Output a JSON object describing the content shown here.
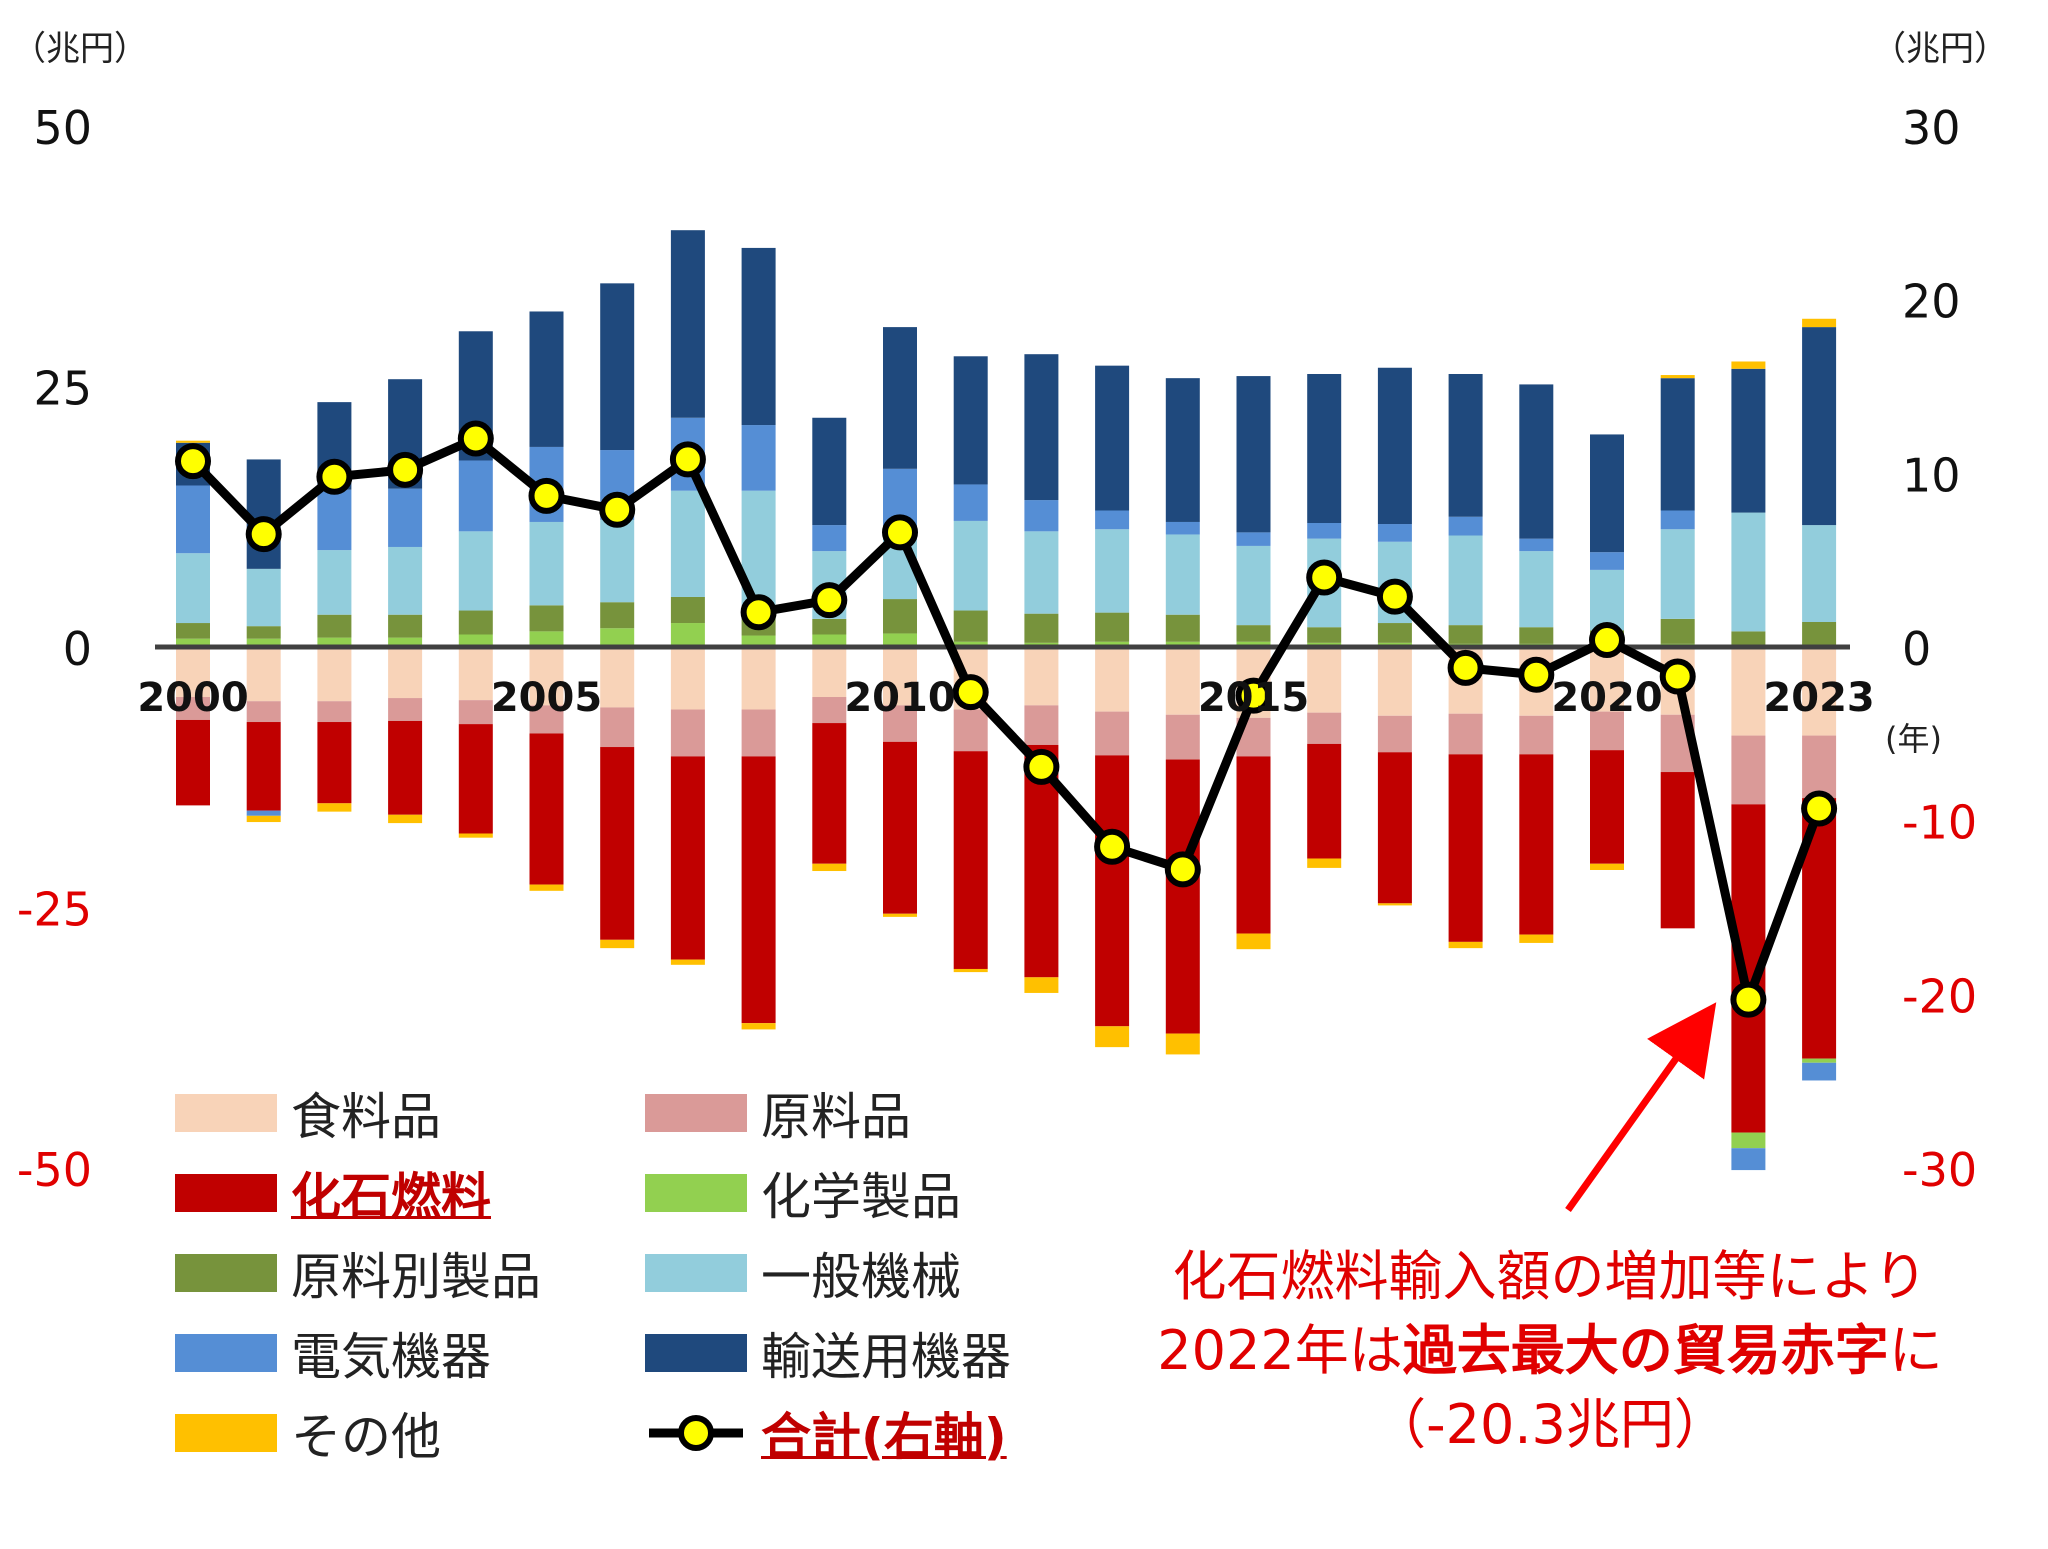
{
  "chart_data": {
    "type": "stacked-bar+line",
    "title": "",
    "left_axis": {
      "unit_label": "（兆円）",
      "ticks": [
        50,
        25,
        0,
        -25,
        -50
      ],
      "ylim": [
        -50,
        50
      ]
    },
    "right_axis": {
      "unit_label": "（兆円）",
      "ticks": [
        30,
        20,
        10,
        0,
        -10,
        -20,
        -30
      ],
      "ylim": [
        -30,
        30
      ]
    },
    "x_unit_label": "(年)",
    "years": [
      2000,
      2001,
      2002,
      2003,
      2004,
      2005,
      2006,
      2007,
      2008,
      2009,
      2010,
      2011,
      2012,
      2013,
      2014,
      2015,
      2016,
      2017,
      2018,
      2019,
      2020,
      2021,
      2022,
      2023
    ],
    "year_tick_labels": [
      {
        "index": 0,
        "label": "2000"
      },
      {
        "index": 5,
        "label": "2005"
      },
      {
        "index": 10,
        "label": "2010"
      },
      {
        "index": 15,
        "label": "2015"
      },
      {
        "index": 20,
        "label": "2020"
      },
      {
        "index": 23,
        "label": "2023"
      }
    ],
    "series": [
      {
        "key": "food",
        "name": "食料品",
        "color": "#f8d3b8",
        "sign": "negative",
        "values": [
          -4.8,
          -5.2,
          -5.2,
          -4.9,
          -5.1,
          -5.6,
          -5.8,
          -6.0,
          -6.0,
          -4.8,
          -5.6,
          -6.0,
          -5.6,
          -6.2,
          -6.5,
          -6.8,
          -6.3,
          -6.6,
          -6.4,
          -6.6,
          -6.2,
          -6.5,
          -8.5,
          -8.5
        ]
      },
      {
        "key": "raw_materials",
        "name": "原料品",
        "color": "#da9a98",
        "sign": "negative",
        "values": [
          -2.2,
          -2.0,
          -2.0,
          -2.2,
          -2.3,
          -2.7,
          -3.8,
          -4.5,
          -4.5,
          -2.5,
          -3.5,
          -4.0,
          -3.8,
          -4.2,
          -4.3,
          -3.7,
          -3.0,
          -3.5,
          -3.9,
          -3.7,
          -3.7,
          -5.5,
          -6.6,
          -6.0
        ]
      },
      {
        "key": "fossil_fuel",
        "name": "化石燃料",
        "color": "#c00000",
        "sign": "negative",
        "values": [
          -8.2,
          -8.5,
          -7.8,
          -9.0,
          -10.5,
          -14.5,
          -18.5,
          -19.5,
          -25.6,
          -13.5,
          -16.5,
          -20.9,
          -22.3,
          -26.0,
          -26.3,
          -17.0,
          -11.0,
          -14.5,
          -18.0,
          -17.3,
          -10.9,
          -15.0,
          -31.5,
          -25.0
        ]
      },
      {
        "key": "chemicals",
        "name": "化学製品",
        "color": "#92d050",
        "sign": "positive",
        "values": [
          0.8,
          0.8,
          0.9,
          0.9,
          1.2,
          1.5,
          1.8,
          2.3,
          1.1,
          1.2,
          1.3,
          0.5,
          0.4,
          0.5,
          0.5,
          0.5,
          0.4,
          0.4,
          0.3,
          0.3,
          0.3,
          0.3,
          -1.5,
          -0.4
        ]
      },
      {
        "key": "manufactured",
        "name": "原料別製品",
        "color": "#77933c",
        "sign": "positive",
        "values": [
          1.5,
          1.2,
          2.2,
          2.2,
          2.3,
          2.5,
          2.5,
          2.5,
          2.3,
          1.5,
          3.3,
          3.0,
          2.8,
          2.8,
          2.6,
          1.6,
          1.5,
          1.9,
          1.8,
          1.6,
          1.3,
          2.4,
          1.5,
          2.4
        ]
      },
      {
        "key": "general_machinery",
        "name": "一般機械",
        "color": "#92cddc",
        "sign": "positive",
        "values": [
          6.7,
          5.5,
          6.2,
          6.5,
          7.6,
          8.0,
          7.9,
          10.2,
          11.6,
          6.5,
          6.7,
          8.6,
          7.9,
          8.0,
          7.7,
          7.6,
          8.5,
          7.8,
          8.6,
          7.3,
          5.8,
          8.6,
          11.4,
          9.3
        ]
      },
      {
        "key": "electrical",
        "name": "電気機器",
        "color": "#558ed5",
        "sign": "positive",
        "values": [
          6.5,
          -0.5,
          5.8,
          5.6,
          6.8,
          7.2,
          6.7,
          7.0,
          6.3,
          2.5,
          5.8,
          3.5,
          3.0,
          1.8,
          1.2,
          1.3,
          1.5,
          1.7,
          1.8,
          1.2,
          1.7,
          1.8,
          -2.1,
          -1.7
        ]
      },
      {
        "key": "transport",
        "name": "輸送用機器",
        "color": "#1f497d",
        "sign": "positive",
        "values": [
          4.1,
          10.5,
          8.4,
          10.5,
          12.4,
          13.0,
          16.0,
          18.0,
          17.0,
          10.3,
          13.6,
          12.3,
          14.0,
          13.9,
          13.8,
          15.0,
          14.3,
          15.0,
          13.7,
          14.8,
          11.3,
          12.7,
          13.8,
          19.0
        ]
      },
      {
        "key": "other",
        "name": "その他",
        "color": "#ffc000",
        "sign": "mixed",
        "values": [
          0.2,
          -0.6,
          -0.8,
          -0.8,
          -0.4,
          -0.6,
          -0.8,
          -0.5,
          -0.6,
          -0.7,
          -0.3,
          -0.3,
          -1.5,
          -2.0,
          -2.0,
          -1.5,
          -0.9,
          -0.2,
          -0.6,
          -0.8,
          -0.6,
          0.3,
          0.7,
          0.8
        ]
      }
    ],
    "total": {
      "name": "合計(右軸)",
      "axis": "right",
      "line_color": "#000000",
      "marker_color": "#ffff00",
      "values": [
        10.7,
        6.5,
        9.8,
        10.2,
        12.0,
        8.7,
        7.9,
        10.8,
        2.0,
        2.7,
        6.6,
        -2.6,
        -6.9,
        -11.5,
        -12.8,
        -2.8,
        4.0,
        2.9,
        -1.2,
        -1.6,
        0.4,
        -1.7,
        -20.3,
        -9.3
      ]
    }
  },
  "legend": {
    "items": [
      {
        "series": "food",
        "label": "食料品",
        "emphasis": false
      },
      {
        "series": "raw_materials",
        "label": "原料品",
        "emphasis": false
      },
      {
        "series": "fossil_fuel",
        "label": "化石燃料",
        "emphasis": true
      },
      {
        "series": "chemicals",
        "label": "化学製品",
        "emphasis": false
      },
      {
        "series": "manufactured",
        "label": "原料別製品",
        "emphasis": false
      },
      {
        "series": "general_machinery",
        "label": "一般機械",
        "emphasis": false
      },
      {
        "series": "electrical",
        "label": "電気機器",
        "emphasis": false
      },
      {
        "series": "transport",
        "label": "輸送用機器",
        "emphasis": false
      },
      {
        "series": "other",
        "label": "その他",
        "emphasis": false
      },
      {
        "series": "total",
        "label": "合計(右軸)",
        "emphasis": true
      }
    ]
  },
  "annotation": {
    "line1": "化石燃料輸入額の増加等により",
    "line2_a": "2022年は",
    "line2_b": "過去最大の貿易赤字",
    "line2_c": "に",
    "line3": "（-20.3兆円）",
    "color": "#e00000"
  }
}
